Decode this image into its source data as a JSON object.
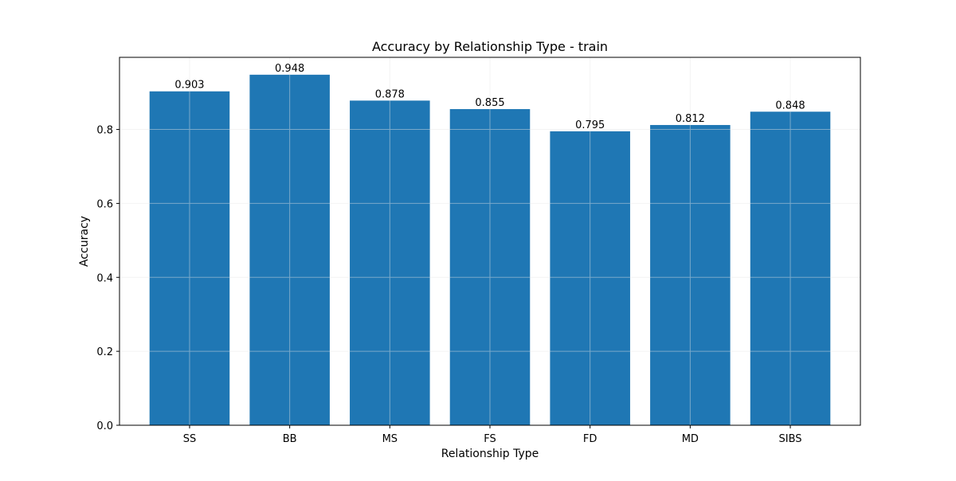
{
  "chart_data": {
    "type": "bar",
    "title": "Accuracy by Relationship Type - train",
    "xlabel": "Relationship Type",
    "ylabel": "Accuracy",
    "categories": [
      "SS",
      "BB",
      "MS",
      "FS",
      "FD",
      "MD",
      "SIBS"
    ],
    "values": [
      0.903,
      0.948,
      0.878,
      0.855,
      0.795,
      0.812,
      0.848
    ],
    "value_labels": [
      "0.903",
      "0.948",
      "0.878",
      "0.855",
      "0.795",
      "0.812",
      "0.848"
    ],
    "ylim": [
      0,
      0.995
    ],
    "yticks": [
      0.0,
      0.2,
      0.4,
      0.6,
      0.8
    ],
    "ytick_labels": [
      "0.0",
      "0.2",
      "0.4",
      "0.6",
      "0.8"
    ],
    "grid": true,
    "legend": "none",
    "bar_color": "#1f77b4",
    "grid_color": "#e6e6e6"
  }
}
